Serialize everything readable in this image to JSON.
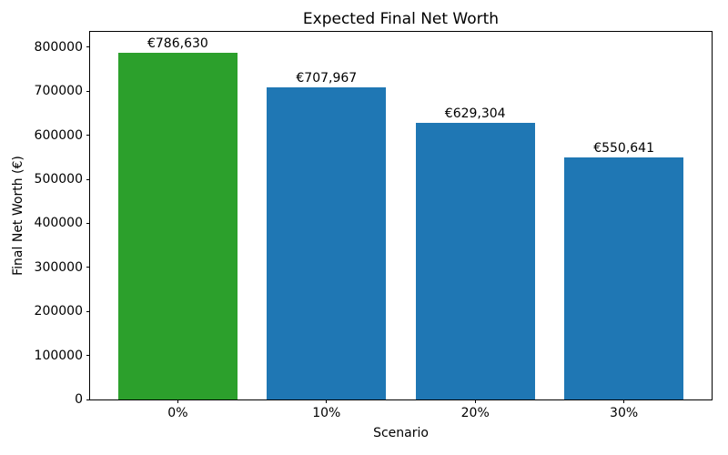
{
  "chart_data": {
    "type": "bar",
    "title": "Expected Final Net Worth",
    "xlabel": "Scenario",
    "ylabel": "Final Net Worth (€)",
    "categories": [
      "0%",
      "10%",
      "20%",
      "30%"
    ],
    "values": [
      786630,
      707967,
      629304,
      550641
    ],
    "bar_labels": [
      "€786,630",
      "€707,967",
      "€629,304",
      "€550,641"
    ],
    "bar_colors": [
      "#2ca02c",
      "#1f77b4",
      "#1f77b4",
      "#1f77b4"
    ],
    "highlight_color": "#2ca02c",
    "default_bar_color": "#1f77b4",
    "ylim": [
      0,
      835000
    ],
    "yticks": [
      0,
      100000,
      200000,
      300000,
      400000,
      500000,
      600000,
      700000,
      800000
    ],
    "grid": false,
    "legend": null
  }
}
